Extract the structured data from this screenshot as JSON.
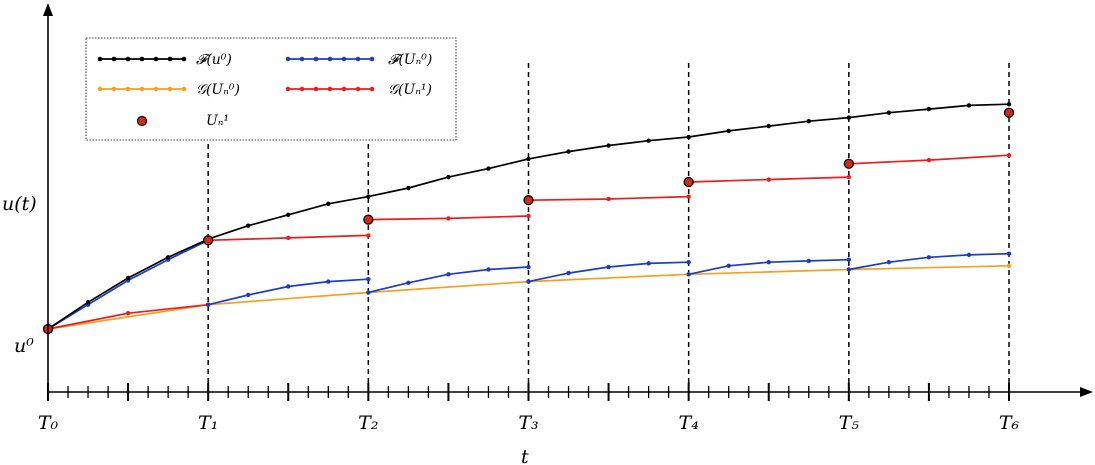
{
  "axes": {
    "y_label": "u(t)",
    "y_origin_label": "u⁰",
    "x_label": "t",
    "ticks": [
      "T₀",
      "T₁",
      "T₂",
      "T₃",
      "T₄",
      "T₅",
      "T₆"
    ]
  },
  "legend": {
    "F_u0": "𝓕(u⁰)",
    "F_Un0": "𝓕(Uₙ⁰)",
    "G_Un0": "𝒢(Uₙ⁰)",
    "G_Un1": "𝒢(Uₙ¹)",
    "Un1": "Uₙ¹"
  },
  "colors": {
    "fine_exact": "#000000",
    "fine_parareal": "#1a3cc8",
    "coarse_0": "#f5a01e",
    "coarse_1": "#ee1c1c",
    "marker_fill": "#d42a1a",
    "axis": "#000000"
  },
  "chart_data": {
    "type": "line",
    "x_domain": [
      0,
      6
    ],
    "y_domain": [
      0,
      1
    ],
    "series": [
      {
        "key": "F_u0",
        "values": [
          [
            0,
            0.07
          ],
          [
            0.25,
            0.18
          ],
          [
            0.5,
            0.28
          ],
          [
            0.75,
            0.365
          ],
          [
            1,
            0.44
          ],
          [
            1.25,
            0.495
          ],
          [
            1.5,
            0.54
          ],
          [
            1.75,
            0.585
          ],
          [
            2,
            0.615
          ],
          [
            2.25,
            0.65
          ],
          [
            2.5,
            0.695
          ],
          [
            2.75,
            0.73
          ],
          [
            3,
            0.77
          ],
          [
            3.25,
            0.8
          ],
          [
            3.5,
            0.825
          ],
          [
            3.75,
            0.845
          ],
          [
            4,
            0.86
          ],
          [
            4.25,
            0.885
          ],
          [
            4.5,
            0.905
          ],
          [
            4.75,
            0.925
          ],
          [
            5,
            0.94
          ],
          [
            5.25,
            0.96
          ],
          [
            5.5,
            0.975
          ],
          [
            5.75,
            0.99
          ],
          [
            6,
            0.995
          ]
        ]
      },
      {
        "key": "F_Un0",
        "segments": [
          [
            [
              0,
              0.07
            ],
            [
              0.25,
              0.17
            ],
            [
              0.5,
              0.27
            ],
            [
              0.75,
              0.355
            ],
            [
              1,
              0.435
            ]
          ],
          [
            [
              1,
              0.17
            ],
            [
              1.25,
              0.21
            ],
            [
              1.5,
              0.245
            ],
            [
              1.75,
              0.265
            ],
            [
              2,
              0.275
            ]
          ],
          [
            [
              2,
              0.22
            ],
            [
              2.25,
              0.26
            ],
            [
              2.5,
              0.295
            ],
            [
              2.75,
              0.315
            ],
            [
              3,
              0.325
            ]
          ],
          [
            [
              3,
              0.265
            ],
            [
              3.25,
              0.3
            ],
            [
              3.5,
              0.325
            ],
            [
              3.75,
              0.34
            ],
            [
              4,
              0.345
            ]
          ],
          [
            [
              4,
              0.295
            ],
            [
              4.25,
              0.33
            ],
            [
              4.5,
              0.345
            ],
            [
              4.75,
              0.35
            ],
            [
              5,
              0.355
            ]
          ],
          [
            [
              5,
              0.315
            ],
            [
              5.25,
              0.345
            ],
            [
              5.5,
              0.365
            ],
            [
              5.75,
              0.375
            ],
            [
              6,
              0.38
            ]
          ]
        ]
      },
      {
        "key": "G_Un0",
        "values": [
          [
            0,
            0.07
          ],
          [
            1,
            0.17
          ],
          [
            2,
            0.22
          ],
          [
            3,
            0.265
          ],
          [
            4,
            0.295
          ],
          [
            5,
            0.315
          ],
          [
            6,
            0.33
          ]
        ]
      },
      {
        "key": "G_Un1",
        "segments": [
          [
            [
              0,
              0.07
            ],
            [
              0.5,
              0.135
            ],
            [
              1,
              0.17
            ]
          ],
          [
            [
              1,
              0.435
            ],
            [
              1.5,
              0.445
            ],
            [
              2,
              0.455
            ]
          ],
          [
            [
              2,
              0.52
            ],
            [
              2.5,
              0.525
            ],
            [
              3,
              0.535
            ]
          ],
          [
            [
              3,
              0.6
            ],
            [
              3.5,
              0.605
            ],
            [
              4,
              0.615
            ]
          ],
          [
            [
              4,
              0.675
            ],
            [
              4.5,
              0.685
            ],
            [
              5,
              0.695
            ]
          ],
          [
            [
              5,
              0.75
            ],
            [
              5.5,
              0.765
            ],
            [
              6,
              0.785
            ]
          ]
        ]
      },
      {
        "key": "Un1",
        "points": [
          [
            0,
            0.07
          ],
          [
            1,
            0.435
          ],
          [
            2,
            0.52
          ],
          [
            3,
            0.6
          ],
          [
            4,
            0.675
          ],
          [
            5,
            0.75
          ],
          [
            6,
            0.96
          ]
        ]
      }
    ]
  }
}
